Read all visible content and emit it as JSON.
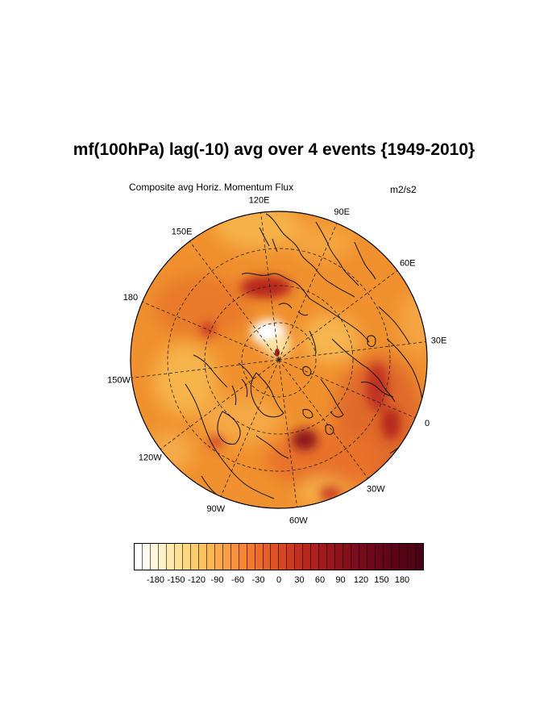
{
  "title": "mf(100hPa) lag(-10) avg over 4 events {1949-2010}",
  "subtitle": "Composite avg Horiz. Momentum Flux",
  "units": "m2/s2",
  "map": {
    "projection": "north polar stereographic",
    "longitude_labels": [
      {
        "text": "120E",
        "lon": 120
      },
      {
        "text": "90E",
        "lon": 90
      },
      {
        "text": "60E",
        "lon": 60
      },
      {
        "text": "30E",
        "lon": 30
      },
      {
        "text": "0",
        "lon": 0
      },
      {
        "text": "30W",
        "lon": -30
      },
      {
        "text": "60W",
        "lon": -60
      },
      {
        "text": "90W",
        "lon": -90
      },
      {
        "text": "120W",
        "lon": -120
      },
      {
        "text": "150W",
        "lon": -150
      },
      {
        "text": "180",
        "lon": 180
      },
      {
        "text": "150E",
        "lon": 150
      }
    ],
    "colors": {
      "background": "#f0902e",
      "hot_spot": "#a81e22",
      "pole_white": "#ffffff",
      "pale_spot": "#f8c45a"
    }
  },
  "colorbar": {
    "labels": [
      "-180",
      "-150",
      "-120",
      "-90",
      "-60",
      "-30",
      "0",
      "30",
      "60",
      "90",
      "120",
      "150",
      "180"
    ],
    "colors": [
      "#ffffff",
      "#fffcef",
      "#fff7dc",
      "#fff1c6",
      "#ffe9ad",
      "#fee196",
      "#fed880",
      "#fdcd6d",
      "#fdc25e",
      "#fcb652",
      "#fba94a",
      "#fa9d43",
      "#f9913c",
      "#f68536",
      "#f27830",
      "#ed6b2c",
      "#e65e28",
      "#df5226",
      "#d64624",
      "#cc3a22",
      "#c23020",
      "#b8271e",
      "#ad201d",
      "#a31a1c",
      "#99161c",
      "#8f131c",
      "#860f1c",
      "#7d0c1c",
      "#750a1b",
      "#6e081a",
      "#68071a",
      "#620619",
      "#5c0518",
      "#560417",
      "#500416",
      "#4a0315"
    ]
  }
}
